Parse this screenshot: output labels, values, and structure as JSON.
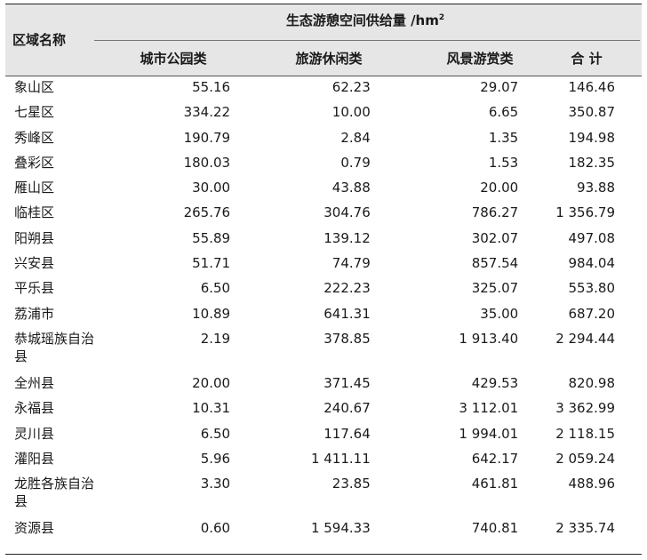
{
  "table": {
    "region_header": "区域名称",
    "group_header": "生态游憩空间供给量 /hm",
    "group_header_sup": "2",
    "columns": [
      "城市公园类",
      "旅游休闲类",
      "风景游赏类",
      "合 计"
    ],
    "rows": [
      {
        "name": "象山区",
        "c1": "55.16",
        "c2": "62.23",
        "c3": "29.07",
        "c4": "146.46"
      },
      {
        "name": "七星区",
        "c1": "334.22",
        "c2": "10.00",
        "c3": "6.65",
        "c4": "350.87"
      },
      {
        "name": "秀峰区",
        "c1": "190.79",
        "c2": "2.84",
        "c3": "1.35",
        "c4": "194.98"
      },
      {
        "name": "叠彩区",
        "c1": "180.03",
        "c2": "0.79",
        "c3": "1.53",
        "c4": "182.35"
      },
      {
        "name": "雁山区",
        "c1": "30.00",
        "c2": "43.88",
        "c3": "20.00",
        "c4": "93.88"
      },
      {
        "name": "临桂区",
        "c1": "265.76",
        "c2": "304.76",
        "c3": "786.27",
        "c4": "1 356.79"
      },
      {
        "name": "阳朔县",
        "c1": "55.89",
        "c2": "139.12",
        "c3": "302.07",
        "c4": "497.08"
      },
      {
        "name": "兴安县",
        "c1": "51.71",
        "c2": "74.79",
        "c3": "857.54",
        "c4": "984.04"
      },
      {
        "name": "平乐县",
        "c1": "6.50",
        "c2": "222.23",
        "c3": "325.07",
        "c4": "553.80"
      },
      {
        "name": "荔浦市",
        "c1": "10.89",
        "c2": "641.31",
        "c3": "35.00",
        "c4": "687.20"
      },
      {
        "name": "恭城瑶族自治县",
        "c1": "2.19",
        "c2": "378.85",
        "c3": "1 913.40",
        "c4": "2 294.44"
      },
      {
        "name": "全州县",
        "c1": "20.00",
        "c2": "371.45",
        "c3": "429.53",
        "c4": "820.98"
      },
      {
        "name": "永福县",
        "c1": "10.31",
        "c2": "240.67",
        "c3": "3 112.01",
        "c4": "3 362.99"
      },
      {
        "name": "灵川县",
        "c1": "6.50",
        "c2": "117.64",
        "c3": "1 994.01",
        "c4": "2 118.15"
      },
      {
        "name": "灌阳县",
        "c1": "5.96",
        "c2": "1 411.11",
        "c3": "642.17",
        "c4": "2 059.24"
      },
      {
        "name": "龙胜各族自治县",
        "c1": "3.30",
        "c2": "23.85",
        "c3": "461.81",
        "c4": "488.96"
      },
      {
        "name": "资源县",
        "c1": "0.60",
        "c2": "1 594.33",
        "c3": "740.81",
        "c4": "2 335.74"
      }
    ]
  }
}
